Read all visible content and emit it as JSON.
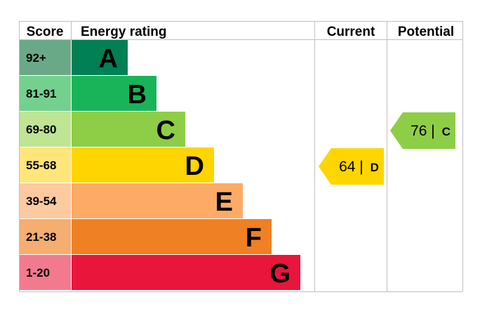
{
  "chart_data": {
    "type": "bar",
    "headers": {
      "score": "Score",
      "rating": "Energy rating",
      "current": "Current",
      "potential": "Potential"
    },
    "bands": [
      {
        "score": "92+",
        "letter": "A",
        "min": 92,
        "max": 100,
        "color": "#008054",
        "score_bg": "#6aa987",
        "letter_color": "#000000"
      },
      {
        "score": "81-91",
        "letter": "B",
        "min": 81,
        "max": 91,
        "color": "#19b459",
        "score_bg": "#74d08e",
        "letter_color": "#000000"
      },
      {
        "score": "69-80",
        "letter": "C",
        "min": 69,
        "max": 80,
        "color": "#8dce46",
        "score_bg": "#bfe493",
        "letter_color": "#000000"
      },
      {
        "score": "55-68",
        "letter": "D",
        "min": 55,
        "max": 68,
        "color": "#ffd500",
        "score_bg": "#ffe57a",
        "letter_color": "#000000"
      },
      {
        "score": "39-54",
        "letter": "E",
        "min": 39,
        "max": 54,
        "color": "#fcaa65",
        "score_bg": "#fdcaa0",
        "letter_color": "#000000"
      },
      {
        "score": "21-38",
        "letter": "F",
        "min": 21,
        "max": 38,
        "color": "#ef8023",
        "score_bg": "#f5ad70",
        "letter_color": "#000000"
      },
      {
        "score": "1-20",
        "letter": "G",
        "min": 1,
        "max": 20,
        "color": "#e9153b",
        "score_bg": "#f27a8f",
        "letter_color": "#000000"
      }
    ],
    "current": {
      "value": 64,
      "letter": "D",
      "color": "#ffd500"
    },
    "potential": {
      "value": 76,
      "letter": "C",
      "color": "#8dce46"
    }
  }
}
